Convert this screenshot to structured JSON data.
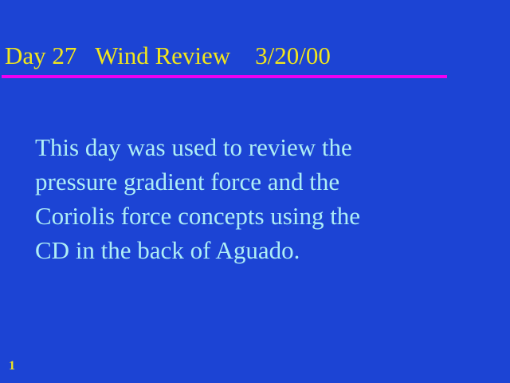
{
  "slide": {
    "title": "Day 27   Wind Review    3/20/00",
    "body_lines": [
      "This day was used to review the",
      "pressure gradient force and the",
      "Coriolis force concepts using the",
      "CD in the back of Aguado."
    ],
    "page_number": "1"
  },
  "colors": {
    "background": "#1c44d4",
    "title": "#f2e61c",
    "rule": "#f000f0",
    "body_text": "#aeeef6",
    "page_number": "#f2e61c"
  }
}
